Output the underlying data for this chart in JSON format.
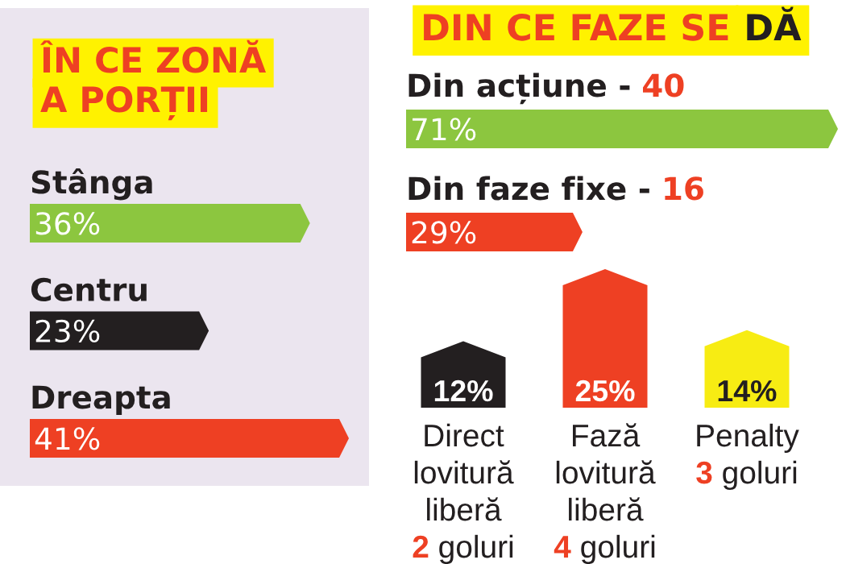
{
  "chart_data": [
    {
      "type": "bar",
      "orientation": "horizontal",
      "title": "ÎN CE ZONĂ\nA PORȚII",
      "categories": [
        "Stânga",
        "Centru",
        "Dreapta"
      ],
      "values": [
        36,
        23,
        41
      ],
      "colors": [
        "#8cc63f",
        "#231f20",
        "#ee4023"
      ],
      "value_labels": [
        "36%",
        "23%",
        "41%"
      ]
    },
    {
      "type": "bar",
      "orientation": "horizontal",
      "title": "DIN CE FAZE SE DĂ",
      "categories": [
        "Din acțiune - 40",
        "Din faze fixe - 16"
      ],
      "values": [
        71,
        29
      ],
      "colors": [
        "#8cc63f",
        "#ee4023"
      ],
      "value_labels": [
        "71%",
        "29%"
      ]
    },
    {
      "type": "bar",
      "categories": [
        "Direct\nlovitură\nliberă\n2 goluri",
        "Fază\nlovitură\nliberă\n4 goluri",
        "Penalty\n3 goluri"
      ],
      "values": [
        12,
        25,
        14
      ],
      "colors": [
        "#231f20",
        "#ee4023",
        "#f7ec13"
      ],
      "value_labels": [
        "12%",
        "25%",
        "14%"
      ]
    }
  ]
}
